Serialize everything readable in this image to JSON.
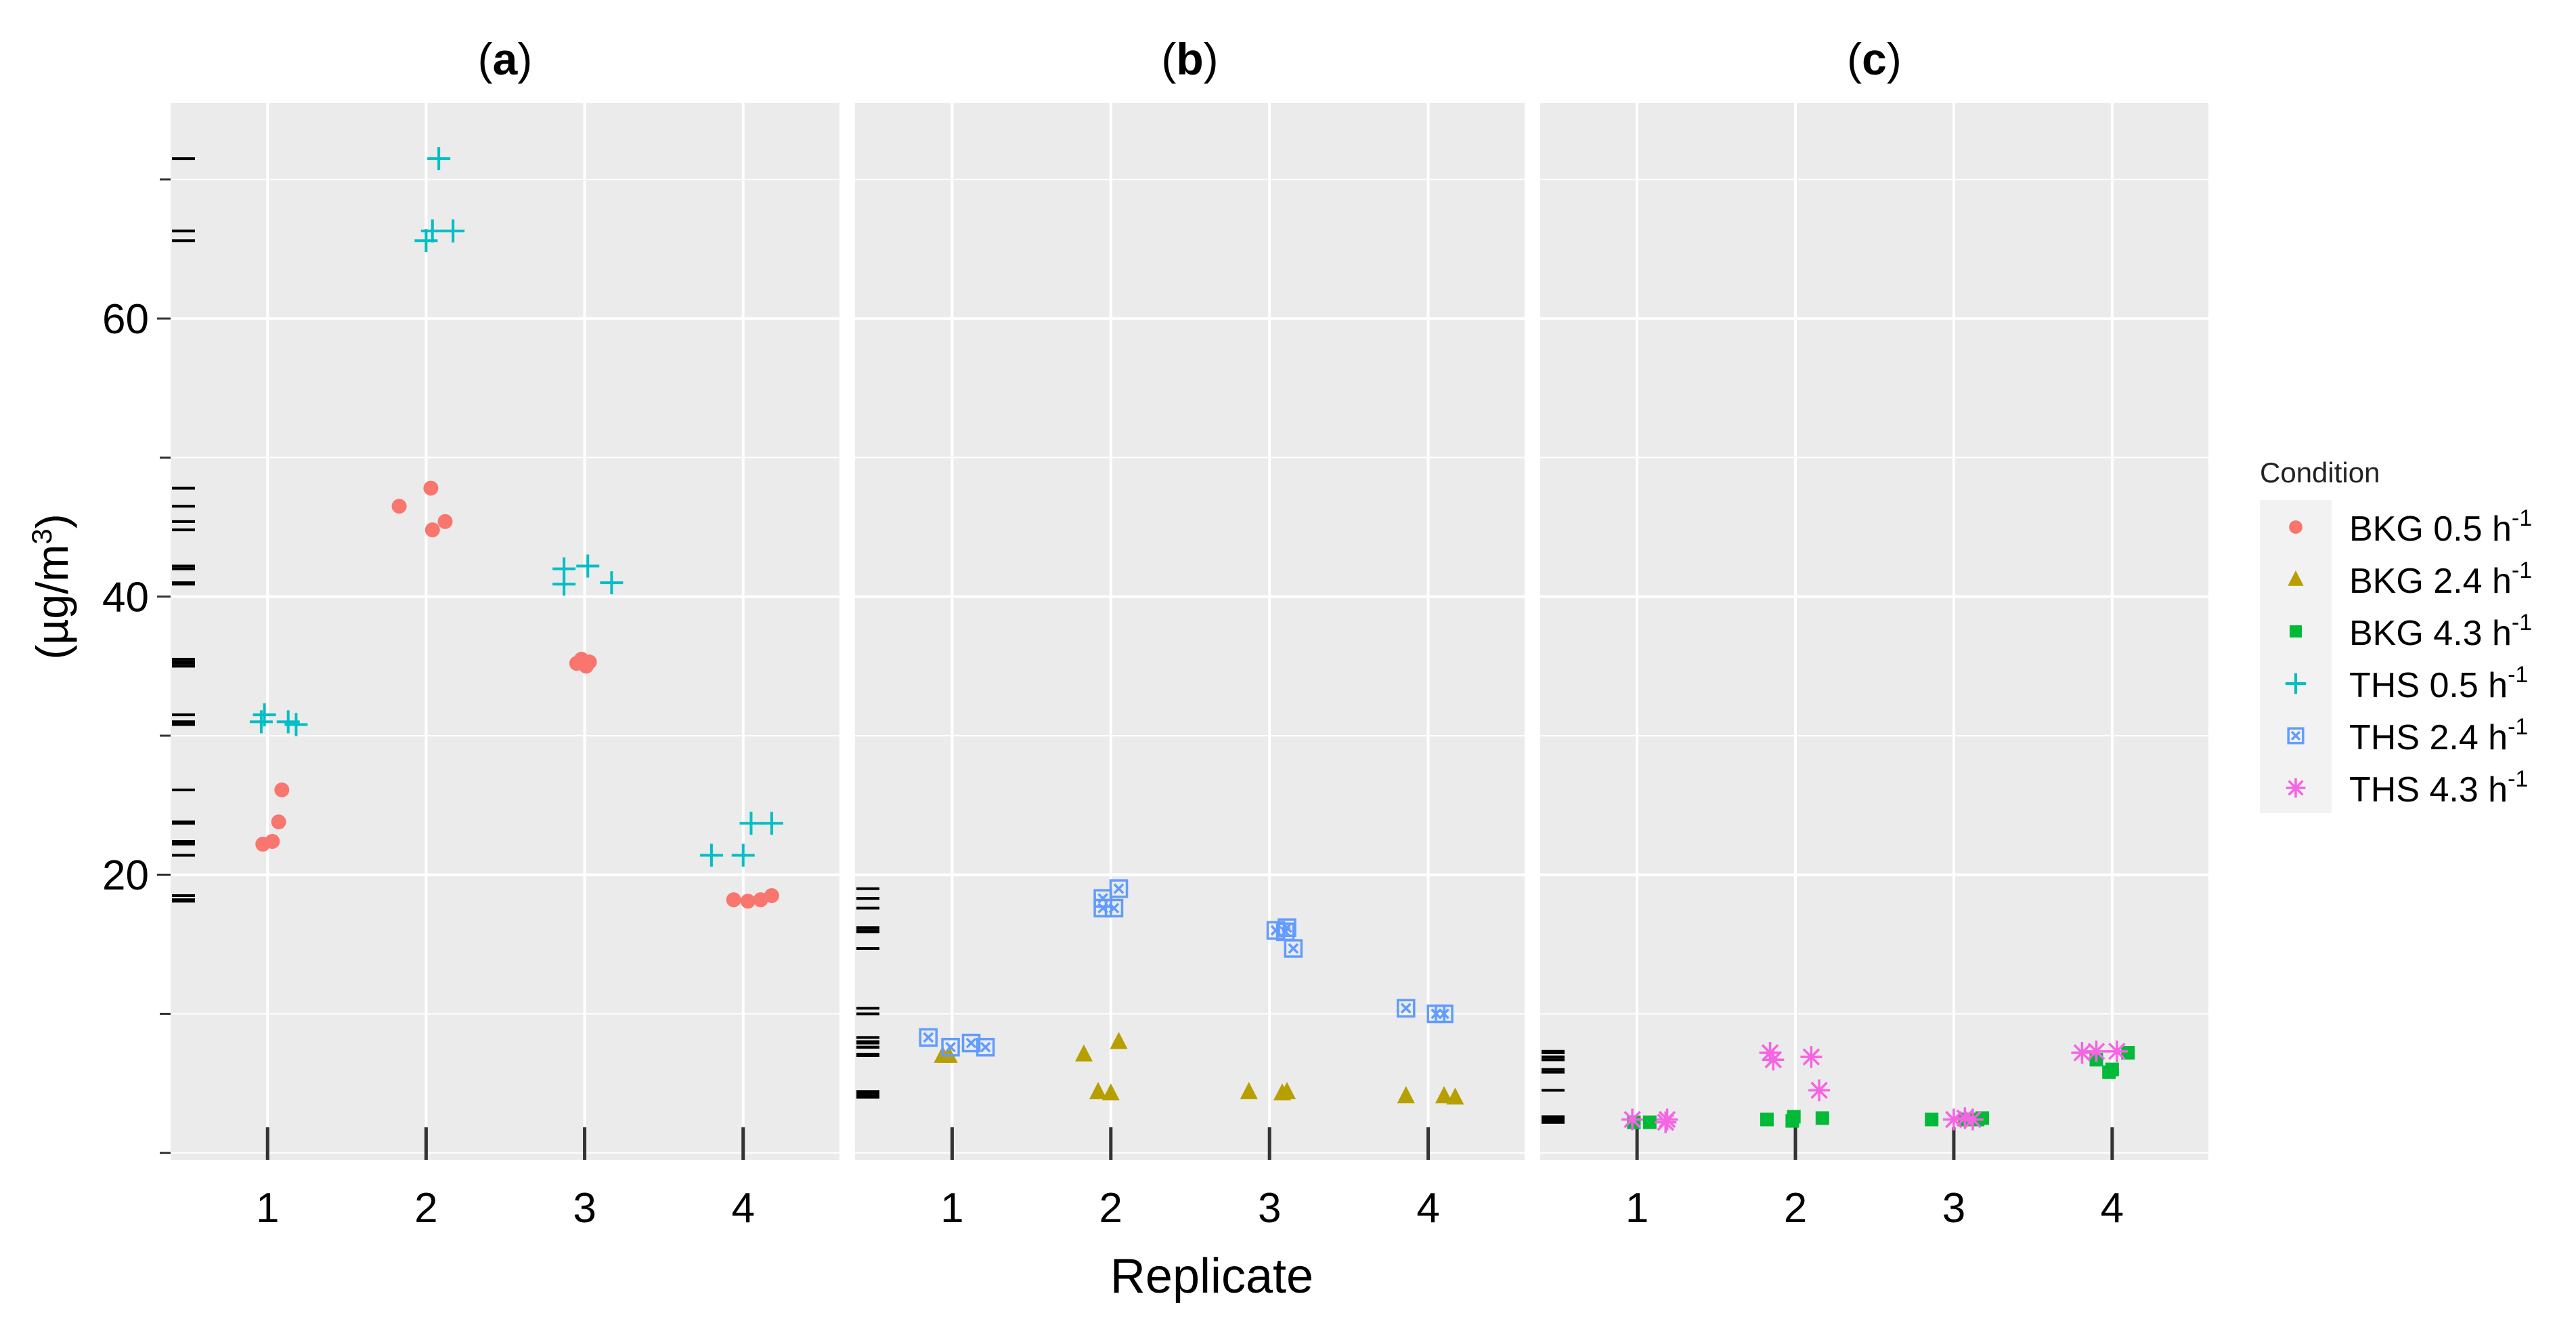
{
  "chart_data": {
    "type": "scatter",
    "ylabel_main": "(µg/m",
    "ylabel_sup": "3",
    "ylabel_close": ")",
    "xlabel": "Replicate",
    "ylim": [
      -0.5,
      75.5
    ],
    "y_ticks": [
      20,
      40,
      60
    ],
    "y_tick_labels": [
      "20",
      "40",
      "60"
    ],
    "x_categories": [
      "1",
      "2",
      "3",
      "4"
    ],
    "panels": [
      {
        "label_open": "(",
        "label_letter": "a",
        "label_close": ")",
        "series": [
          {
            "key": "bkg05",
            "points": [
              {
                "x": 0.97,
                "y": 22.2
              },
              {
                "x": 1.03,
                "y": 22.4
              },
              {
                "x": 1.07,
                "y": 23.8
              },
              {
                "x": 1.09,
                "y": 26.1
              },
              {
                "x": 1.83,
                "y": 46.5
              },
              {
                "x": 2.03,
                "y": 47.8
              },
              {
                "x": 2.04,
                "y": 44.8
              },
              {
                "x": 2.12,
                "y": 45.4
              },
              {
                "x": 2.95,
                "y": 35.2
              },
              {
                "x": 2.98,
                "y": 35.5
              },
              {
                "x": 3.01,
                "y": 35.0
              },
              {
                "x": 3.03,
                "y": 35.3
              },
              {
                "x": 3.94,
                "y": 18.2
              },
              {
                "x": 4.03,
                "y": 18.1
              },
              {
                "x": 4.11,
                "y": 18.2
              },
              {
                "x": 4.18,
                "y": 18.5
              }
            ]
          },
          {
            "key": "ths05",
            "points": [
              {
                "x": 0.96,
                "y": 31.0
              },
              {
                "x": 0.98,
                "y": 31.5
              },
              {
                "x": 1.13,
                "y": 31.0
              },
              {
                "x": 1.18,
                "y": 30.8
              },
              {
                "x": 2.0,
                "y": 65.6
              },
              {
                "x": 2.04,
                "y": 66.3
              },
              {
                "x": 2.08,
                "y": 71.5
              },
              {
                "x": 2.17,
                "y": 66.3
              },
              {
                "x": 2.87,
                "y": 40.9
              },
              {
                "x": 2.87,
                "y": 42.0
              },
              {
                "x": 3.02,
                "y": 42.2
              },
              {
                "x": 3.17,
                "y": 41.0
              },
              {
                "x": 3.8,
                "y": 21.4
              },
              {
                "x": 4.0,
                "y": 21.4
              },
              {
                "x": 4.05,
                "y": 23.7
              },
              {
                "x": 4.18,
                "y": 23.7
              }
            ]
          }
        ]
      },
      {
        "label_open": "(",
        "label_letter": "b",
        "label_close": ")",
        "series": [
          {
            "key": "bkg24",
            "points": [
              {
                "x": 0.94,
                "y": 7.0
              },
              {
                "x": 0.98,
                "y": 7.0
              },
              {
                "x": 1.83,
                "y": 7.1
              },
              {
                "x": 1.92,
                "y": 4.4
              },
              {
                "x": 2.0,
                "y": 4.3
              },
              {
                "x": 2.05,
                "y": 8.0
              },
              {
                "x": 2.87,
                "y": 4.4
              },
              {
                "x": 3.08,
                "y": 4.3
              },
              {
                "x": 3.11,
                "y": 4.4
              },
              {
                "x": 3.86,
                "y": 4.1
              },
              {
                "x": 4.1,
                "y": 4.1
              },
              {
                "x": 4.17,
                "y": 4.0
              }
            ]
          },
          {
            "key": "ths24",
            "points": [
              {
                "x": 0.85,
                "y": 8.3
              },
              {
                "x": 0.99,
                "y": 7.6
              },
              {
                "x": 1.12,
                "y": 7.9
              },
              {
                "x": 1.21,
                "y": 7.6
              },
              {
                "x": 1.95,
                "y": 17.6
              },
              {
                "x": 1.95,
                "y": 18.3
              },
              {
                "x": 2.02,
                "y": 17.6
              },
              {
                "x": 2.05,
                "y": 19.0
              },
              {
                "x": 3.04,
                "y": 16.0
              },
              {
                "x": 3.1,
                "y": 15.9
              },
              {
                "x": 3.11,
                "y": 16.2
              },
              {
                "x": 3.15,
                "y": 14.7
              },
              {
                "x": 3.86,
                "y": 10.4
              },
              {
                "x": 4.05,
                "y": 10.0
              },
              {
                "x": 4.1,
                "y": 10.0
              }
            ]
          }
        ]
      },
      {
        "label_open": "(",
        "label_letter": "c",
        "label_close": ")",
        "series": [
          {
            "key": "bkg43",
            "points": [
              {
                "x": 0.98,
                "y": 2.2
              },
              {
                "x": 1.08,
                "y": 2.2
              },
              {
                "x": 1.82,
                "y": 2.4
              },
              {
                "x": 1.98,
                "y": 2.3
              },
              {
                "x": 1.99,
                "y": 2.6
              },
              {
                "x": 2.17,
                "y": 2.5
              },
              {
                "x": 2.86,
                "y": 2.4
              },
              {
                "x": 3.07,
                "y": 2.4
              },
              {
                "x": 3.15,
                "y": 2.4
              },
              {
                "x": 3.18,
                "y": 2.5
              },
              {
                "x": 3.9,
                "y": 6.7
              },
              {
                "x": 3.98,
                "y": 5.8
              },
              {
                "x": 4.0,
                "y": 6.0
              },
              {
                "x": 4.1,
                "y": 7.2
              }
            ]
          },
          {
            "key": "ths43",
            "points": [
              {
                "x": 0.97,
                "y": 2.4
              },
              {
                "x": 1.18,
                "y": 2.2
              },
              {
                "x": 1.19,
                "y": 2.4
              },
              {
                "x": 1.84,
                "y": 7.2
              },
              {
                "x": 1.86,
                "y": 6.7
              },
              {
                "x": 2.1,
                "y": 6.9
              },
              {
                "x": 2.15,
                "y": 4.5
              },
              {
                "x": 3.0,
                "y": 2.4
              },
              {
                "x": 3.07,
                "y": 2.5
              },
              {
                "x": 3.12,
                "y": 2.4
              },
              {
                "x": 3.81,
                "y": 7.2
              },
              {
                "x": 3.9,
                "y": 7.3
              },
              {
                "x": 4.03,
                "y": 7.3
              }
            ]
          }
        ]
      }
    ],
    "legend": {
      "title": "Condition",
      "position": "right",
      "entries": [
        {
          "key": "bkg05",
          "label": "BKG 0.5 h",
          "sup": "-1",
          "shape": "circle",
          "color": "#F8766D"
        },
        {
          "key": "bkg24",
          "label": "BKG 2.4 h",
          "sup": "-1",
          "shape": "triangle",
          "color": "#B79F00"
        },
        {
          "key": "bkg43",
          "label": "BKG 4.3 h",
          "sup": "-1",
          "shape": "square",
          "color": "#00BA38"
        },
        {
          "key": "ths05",
          "label": "THS 0.5 h",
          "sup": "-1",
          "shape": "plus",
          "color": "#00BFC4"
        },
        {
          "key": "ths24",
          "label": "THS 2.4 h",
          "sup": "-1",
          "shape": "square-x",
          "color": "#619CFF"
        },
        {
          "key": "ths43",
          "label": "THS 4.3 h",
          "sup": "-1",
          "shape": "asterisk",
          "color": "#F564E3"
        }
      ]
    },
    "grid": true,
    "panel_background": "#EBEBEB",
    "grid_color": "#FFFFFF"
  }
}
